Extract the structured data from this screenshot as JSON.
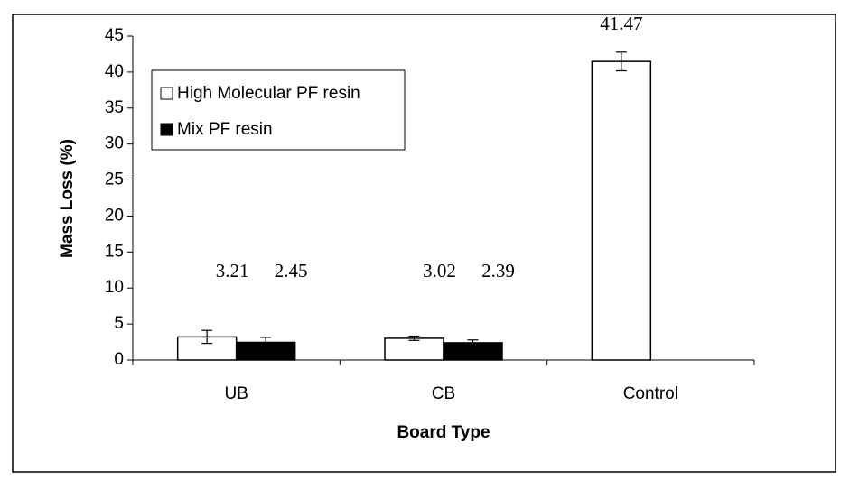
{
  "chart_data": {
    "type": "bar",
    "x_label": "Board Type",
    "y_label": "Mass Loss (%)",
    "categories": [
      "UB",
      "CB",
      "Control"
    ],
    "series": [
      {
        "name": "High Molecular PF resin",
        "color": "#ffffff",
        "values": [
          3.21,
          3.02,
          41.47
        ],
        "errors": [
          0.9,
          0.3,
          1.3
        ]
      },
      {
        "name": "Mix PF resin",
        "color": "#000000",
        "values": [
          2.45,
          2.39,
          null
        ],
        "errors": [
          0.7,
          0.4,
          null
        ]
      }
    ],
    "ylim": [
      0,
      45
    ],
    "yticks": [
      0,
      5,
      10,
      15,
      20,
      25,
      30,
      35,
      40,
      45
    ],
    "legend": "upper left",
    "data_labels": true
  }
}
